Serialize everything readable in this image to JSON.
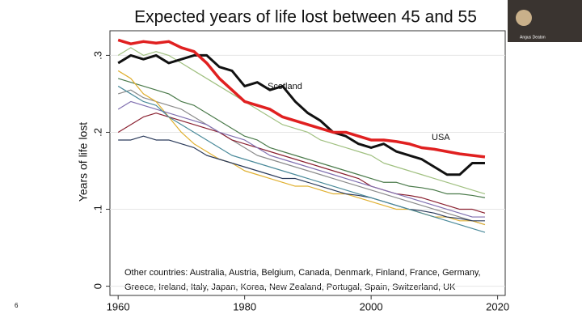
{
  "slide_number": "6",
  "presenter_label": "Angus Deaton",
  "chart_data": {
    "type": "line",
    "title": "Expected years of life lost between 45 and 55",
    "y_label": "Years of life lost",
    "annotations": [
      "Scotland",
      "USA"
    ],
    "note": [
      "Other countries: Australia, Austria, Belgium, Canada, Denmark, Finland, France, Germany,",
      "Greece, Ireland, Italy, Japan, Korea, New Zealand, Portugal, Spain, Switzerland, UK"
    ],
    "xlim": [
      1958.7,
      2021.2
    ],
    "ylim": [
      -0.012,
      0.332
    ],
    "xticks": [
      1960,
      1980,
      2000,
      2020
    ],
    "yticks": [
      {
        "value": 0.3,
        "label": ".3"
      },
      {
        "value": 0.2,
        "label": ".2"
      },
      {
        "value": 0.1,
        "label": ".1"
      },
      0
    ],
    "grid": true,
    "x": [
      1960,
      1962,
      1964,
      1966,
      1968,
      1970,
      1972,
      1974,
      1976,
      1978,
      1980,
      1982,
      1984,
      1986,
      1988,
      1990,
      1992,
      1994,
      1996,
      1998,
      2000,
      2002,
      2004,
      2006,
      2008,
      2010,
      2012,
      2014,
      2016,
      2018
    ],
    "series": [
      {
        "color": "#4a7a4a",
        "values": [
          0.27,
          0.265,
          0.26,
          0.255,
          0.25,
          0.24,
          0.235,
          0.225,
          0.215,
          0.205,
          0.195,
          0.19,
          0.18,
          0.175,
          0.17,
          0.165,
          0.16,
          0.155,
          0.15,
          0.145,
          0.14,
          0.135,
          0.135,
          0.13,
          0.128,
          0.125,
          0.12,
          0.12,
          0.118,
          0.115
        ]
      },
      {
        "color": "#8a8a8a",
        "values": [
          0.25,
          0.255,
          0.245,
          0.24,
          0.235,
          0.23,
          0.22,
          0.21,
          0.2,
          0.19,
          0.18,
          0.17,
          0.165,
          0.16,
          0.155,
          0.15,
          0.145,
          0.14,
          0.135,
          0.13,
          0.125,
          0.12,
          0.115,
          0.11,
          0.105,
          0.1,
          0.095,
          0.09,
          0.085,
          0.08
        ]
      },
      {
        "color": "#e0b030",
        "values": [
          0.28,
          0.27,
          0.25,
          0.24,
          0.22,
          0.2,
          0.185,
          0.175,
          0.165,
          0.16,
          0.15,
          0.145,
          0.14,
          0.135,
          0.13,
          0.13,
          0.125,
          0.12,
          0.12,
          0.115,
          0.11,
          0.105,
          0.1,
          0.1,
          0.095,
          0.09,
          0.09,
          0.085,
          0.085,
          0.08
        ]
      },
      {
        "color": "#2a3a5a",
        "values": [
          0.19,
          0.19,
          0.195,
          0.19,
          0.19,
          0.185,
          0.18,
          0.17,
          0.165,
          0.16,
          0.155,
          0.15,
          0.145,
          0.14,
          0.14,
          0.135,
          0.13,
          0.125,
          0.12,
          0.118,
          0.115,
          0.11,
          0.105,
          0.1,
          0.098,
          0.095,
          0.09,
          0.088,
          0.085,
          0.085
        ]
      },
      {
        "color": "#8a2030",
        "values": [
          0.2,
          0.21,
          0.22,
          0.225,
          0.22,
          0.215,
          0.21,
          0.205,
          0.2,
          0.19,
          0.185,
          0.18,
          0.175,
          0.17,
          0.165,
          0.16,
          0.155,
          0.15,
          0.145,
          0.14,
          0.13,
          0.125,
          0.12,
          0.118,
          0.115,
          0.11,
          0.105,
          0.1,
          0.1,
          0.095
        ]
      },
      {
        "color": "#8070b0",
        "values": [
          0.23,
          0.24,
          0.235,
          0.23,
          0.225,
          0.22,
          0.215,
          0.21,
          0.2,
          0.195,
          0.19,
          0.18,
          0.17,
          0.165,
          0.16,
          0.155,
          0.15,
          0.145,
          0.14,
          0.135,
          0.13,
          0.125,
          0.12,
          0.115,
          0.11,
          0.105,
          0.1,
          0.095,
          0.09,
          0.09
        ]
      },
      {
        "color": "#4a8a9a",
        "values": [
          0.26,
          0.25,
          0.24,
          0.235,
          0.22,
          0.21,
          0.2,
          0.19,
          0.18,
          0.17,
          0.165,
          0.16,
          0.155,
          0.15,
          0.145,
          0.14,
          0.135,
          0.13,
          0.125,
          0.12,
          0.115,
          0.11,
          0.105,
          0.1,
          0.095,
          0.09,
          0.085,
          0.08,
          0.075,
          0.07
        ]
      },
      {
        "color": "#a0c080",
        "values": [
          0.3,
          0.31,
          0.3,
          0.305,
          0.3,
          0.29,
          0.28,
          0.27,
          0.26,
          0.25,
          0.24,
          0.23,
          0.22,
          0.21,
          0.205,
          0.2,
          0.19,
          0.185,
          0.18,
          0.175,
          0.17,
          0.16,
          0.155,
          0.15,
          0.145,
          0.14,
          0.135,
          0.13,
          0.125,
          0.12
        ]
      },
      {
        "name": "Scotland",
        "color": "#111111",
        "width": 3,
        "values": [
          0.29,
          0.3,
          0.295,
          0.3,
          0.29,
          0.295,
          0.3,
          0.3,
          0.285,
          0.28,
          0.26,
          0.265,
          0.255,
          0.26,
          0.24,
          0.225,
          0.215,
          0.2,
          0.195,
          0.185,
          0.18,
          0.185,
          0.175,
          0.17,
          0.165,
          0.155,
          0.145,
          0.145,
          0.16,
          0.16
        ]
      },
      {
        "name": "USA",
        "color": "#e02020",
        "width": 3.5,
        "values": [
          0.32,
          0.315,
          0.318,
          0.316,
          0.318,
          0.31,
          0.305,
          0.29,
          0.27,
          0.255,
          0.24,
          0.235,
          0.23,
          0.22,
          0.215,
          0.21,
          0.205,
          0.2,
          0.2,
          0.195,
          0.19,
          0.19,
          0.188,
          0.185,
          0.18,
          0.178,
          0.175,
          0.172,
          0.17,
          0.168
        ]
      }
    ]
  }
}
